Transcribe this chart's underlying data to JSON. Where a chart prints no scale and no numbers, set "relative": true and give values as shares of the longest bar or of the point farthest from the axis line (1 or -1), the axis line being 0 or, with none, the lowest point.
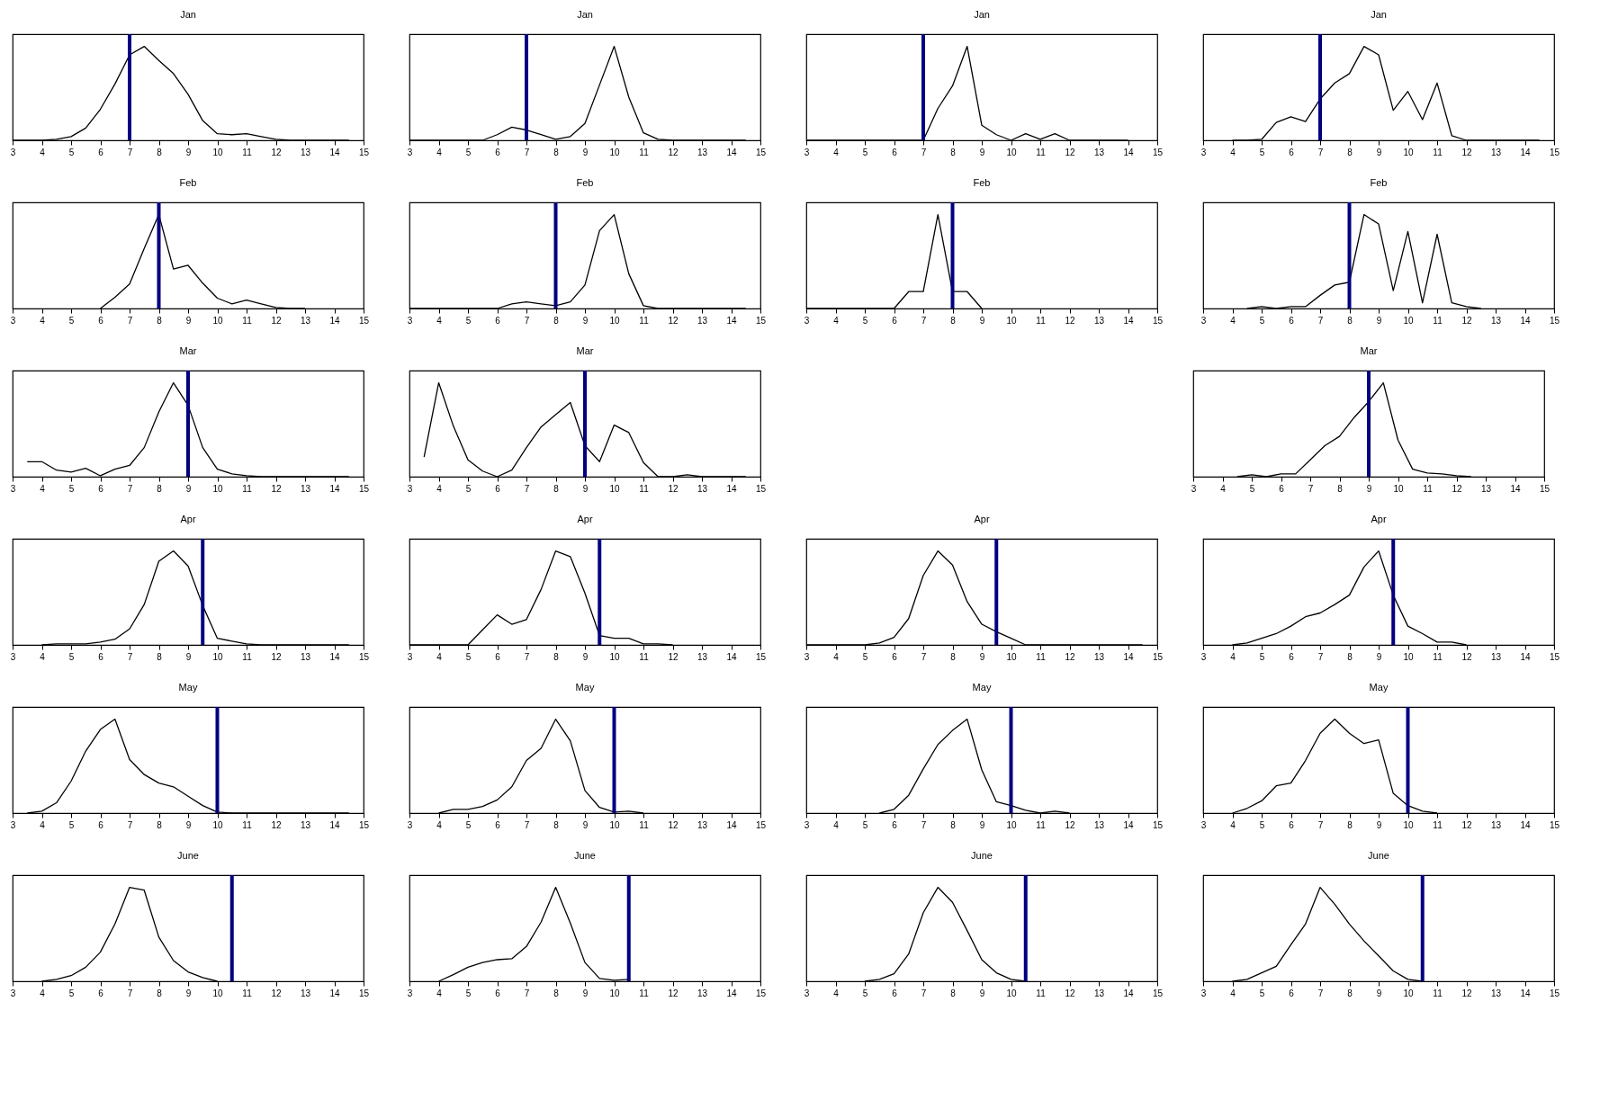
{
  "chart_data": [
    {
      "type": "line",
      "title": "Jan",
      "relative": true,
      "color": "#000000",
      "xlim": [
        3,
        15
      ],
      "xticks": [
        3,
        4,
        5,
        6,
        7,
        8,
        9,
        10,
        11,
        12,
        13,
        14,
        15
      ],
      "ref_lines": [
        {
          "axis": "x",
          "value": 7,
          "color": "#000080"
        }
      ],
      "x": [
        3,
        3.5,
        4,
        4.5,
        5,
        5.5,
        6,
        6.5,
        7,
        7.5,
        8,
        8.5,
        9,
        9.5,
        10,
        10.5,
        11,
        11.5,
        12,
        12.5,
        13,
        13.5,
        14,
        14.5
      ],
      "values": [
        0,
        0,
        0,
        0.01,
        0.04,
        0.13,
        0.33,
        0.6,
        0.91,
        1,
        0.85,
        0.71,
        0.49,
        0.21,
        0.07,
        0.06,
        0.07,
        0.04,
        0.01,
        0,
        0,
        0,
        0,
        0
      ]
    },
    {
      "type": "line",
      "title": "Jan",
      "relative": true,
      "color": "#000000",
      "xlim": [
        3,
        15
      ],
      "xticks": [
        3,
        4,
        5,
        6,
        7,
        8,
        9,
        10,
        11,
        12,
        13,
        14,
        15
      ],
      "ref_lines": [
        {
          "axis": "x",
          "value": 7,
          "color": "#000080"
        }
      ],
      "x": [
        3,
        3.5,
        4,
        4.5,
        5,
        5.5,
        6,
        6.5,
        7,
        7.5,
        8,
        8.5,
        9,
        9.5,
        10,
        10.5,
        11,
        11.5,
        12,
        12.5,
        13,
        13.5,
        14,
        14.5
      ],
      "values": [
        0,
        0,
        0,
        0,
        0,
        0,
        0.06,
        0.14,
        0.11,
        0.06,
        0.01,
        0.04,
        0.18,
        0.59,
        1,
        0.46,
        0.08,
        0.01,
        0,
        0,
        0,
        0,
        0,
        0
      ]
    },
    {
      "type": "line",
      "title": "Jan",
      "relative": true,
      "color": "#000000",
      "xlim": [
        3,
        15
      ],
      "xticks": [
        3,
        4,
        5,
        6,
        7,
        8,
        9,
        10,
        11,
        12,
        13,
        14,
        15
      ],
      "ref_lines": [
        {
          "axis": "x",
          "value": 7,
          "color": "#000080"
        }
      ],
      "x": [
        3,
        3.5,
        4,
        4.5,
        5,
        5.5,
        6,
        6.5,
        7,
        7.5,
        8,
        8.5,
        9,
        9.5,
        10,
        10.5,
        11,
        11.5,
        12,
        12.5,
        13,
        13.5,
        14
      ],
      "values": [
        0,
        0,
        0,
        0,
        0,
        0,
        0,
        0,
        0,
        0.34,
        0.58,
        1,
        0.16,
        0.06,
        0,
        0.07,
        0.01,
        0.07,
        0,
        0,
        0,
        0,
        0
      ]
    },
    {
      "type": "line",
      "title": "Jan",
      "relative": true,
      "color": "#000000",
      "xlim": [
        3,
        15
      ],
      "xticks": [
        3,
        4,
        5,
        6,
        7,
        8,
        9,
        10,
        11,
        12,
        13,
        14,
        15
      ],
      "ref_lines": [
        {
          "axis": "x",
          "value": 7,
          "color": "#000080"
        }
      ],
      "x": [
        4,
        4.5,
        5,
        5.5,
        6,
        6.5,
        7,
        7.5,
        8,
        8.5,
        9,
        9.5,
        10,
        10.5,
        11,
        11.5,
        12,
        12.5,
        13,
        13.5,
        14,
        14.5
      ],
      "values": [
        0,
        0,
        0.01,
        0.19,
        0.25,
        0.2,
        0.44,
        0.61,
        0.71,
        1,
        0.91,
        0.32,
        0.52,
        0.22,
        0.61,
        0.05,
        0,
        0,
        0,
        0,
        0,
        0
      ]
    },
    {
      "type": "line",
      "title": "Feb",
      "relative": true,
      "color": "#000000",
      "xlim": [
        3,
        15
      ],
      "xticks": [
        3,
        4,
        5,
        6,
        7,
        8,
        9,
        10,
        11,
        12,
        13,
        14,
        15
      ],
      "ref_lines": [
        {
          "axis": "x",
          "value": 8,
          "color": "#000080"
        }
      ],
      "x": [
        6,
        6.5,
        7,
        7.5,
        8,
        8.5,
        9,
        9.5,
        10,
        10.5,
        11,
        11.5,
        12,
        12.5,
        13
      ],
      "values": [
        0,
        0.12,
        0.26,
        0.64,
        1,
        0.42,
        0.46,
        0.27,
        0.11,
        0.05,
        0.09,
        0.05,
        0.01,
        0,
        0
      ]
    },
    {
      "type": "line",
      "title": "Feb",
      "relative": true,
      "color": "#000000",
      "xlim": [
        3,
        15
      ],
      "xticks": [
        3,
        4,
        5,
        6,
        7,
        8,
        9,
        10,
        11,
        12,
        13,
        14,
        15
      ],
      "ref_lines": [
        {
          "axis": "x",
          "value": 8,
          "color": "#000080"
        }
      ],
      "x": [
        3,
        3.5,
        4,
        4.5,
        5,
        5.5,
        6,
        6.5,
        7,
        7.5,
        8,
        8.5,
        9,
        9.5,
        10,
        10.5,
        11,
        11.5,
        12,
        12.5,
        13,
        13.5,
        14,
        14.5
      ],
      "values": [
        0,
        0,
        0,
        0,
        0,
        0,
        0,
        0.05,
        0.07,
        0.05,
        0.03,
        0.07,
        0.25,
        0.83,
        1,
        0.37,
        0.03,
        0,
        0,
        0,
        0,
        0,
        0,
        0
      ]
    },
    {
      "type": "line",
      "title": "Feb",
      "relative": true,
      "color": "#000000",
      "xlim": [
        3,
        15
      ],
      "xticks": [
        3,
        4,
        5,
        6,
        7,
        8,
        9,
        10,
        11,
        12,
        13,
        14,
        15
      ],
      "ref_lines": [
        {
          "axis": "x",
          "value": 8,
          "color": "#000080"
        }
      ],
      "x": [
        3,
        3.5,
        4,
        4.5,
        5,
        5.5,
        6,
        6.5,
        7,
        7.5,
        8,
        8.5,
        9
      ],
      "values": [
        0,
        0,
        0,
        0,
        0,
        0,
        0,
        0.18,
        0.18,
        1,
        0.18,
        0.18,
        0
      ]
    },
    {
      "type": "line",
      "title": "Feb",
      "relative": true,
      "color": "#000000",
      "xlim": [
        3,
        15
      ],
      "xticks": [
        3,
        4,
        5,
        6,
        7,
        8,
        9,
        10,
        11,
        12,
        13,
        14,
        15
      ],
      "ref_lines": [
        {
          "axis": "x",
          "value": 8,
          "color": "#000080"
        }
      ],
      "x": [
        4.5,
        5,
        5.5,
        6,
        6.5,
        7,
        7.5,
        8,
        8.5,
        9,
        9.5,
        10,
        10.5,
        11,
        11.5,
        12,
        12.5
      ],
      "values": [
        0,
        0.02,
        0,
        0.02,
        0.02,
        0.14,
        0.25,
        0.28,
        1,
        0.9,
        0.19,
        0.82,
        0.06,
        0.79,
        0.06,
        0.02,
        0
      ]
    },
    {
      "type": "line",
      "title": "Mar",
      "relative": true,
      "color": "#000000",
      "xlim": [
        3,
        15
      ],
      "xticks": [
        3,
        4,
        5,
        6,
        7,
        8,
        9,
        10,
        11,
        12,
        13,
        14,
        15
      ],
      "ref_lines": [
        {
          "axis": "x",
          "value": 9,
          "color": "#000080"
        }
      ],
      "x": [
        3.5,
        4,
        4.5,
        5,
        5.5,
        6,
        6.5,
        7,
        7.5,
        8,
        8.5,
        9,
        9.5,
        10,
        10.5,
        11,
        11.5,
        12,
        12.5,
        13,
        13.5,
        14,
        14.5
      ],
      "values": [
        0.16,
        0.16,
        0.07,
        0.05,
        0.09,
        0.01,
        0.08,
        0.12,
        0.31,
        0.69,
        1,
        0.76,
        0.31,
        0.08,
        0.03,
        0.01,
        0,
        0,
        0,
        0,
        0,
        0,
        0
      ]
    },
    {
      "type": "line",
      "title": "Mar",
      "relative": true,
      "color": "#000000",
      "xlim": [
        3,
        15
      ],
      "xticks": [
        3,
        4,
        5,
        6,
        7,
        8,
        9,
        10,
        11,
        12,
        13,
        14,
        15
      ],
      "ref_lines": [
        {
          "axis": "x",
          "value": 9,
          "color": "#000080"
        }
      ],
      "x": [
        3.5,
        4,
        4.5,
        5,
        5.5,
        6,
        6.5,
        7,
        7.5,
        8,
        8.5,
        9,
        9.5,
        10,
        10.5,
        11,
        11.5,
        12,
        12.5,
        13,
        13.5,
        14,
        14.5
      ],
      "values": [
        0.21,
        1,
        0.54,
        0.18,
        0.06,
        0,
        0.07,
        0.31,
        0.53,
        0.66,
        0.79,
        0.33,
        0.16,
        0.55,
        0.47,
        0.15,
        0,
        0,
        0.02,
        0,
        0,
        0,
        0
      ]
    },
    {
      "type": "line",
      "title": "Mar",
      "relative": true,
      "color": "#000000",
      "xlim": [
        3,
        15
      ],
      "xticks": [
        3,
        4,
        5,
        6,
        7,
        8,
        9,
        10,
        11,
        12,
        13,
        14,
        15
      ],
      "ref_lines": [
        {
          "axis": "x",
          "value": 9,
          "color": "#000080"
        }
      ],
      "x": [
        4.5,
        5,
        5.5,
        6,
        6.5,
        7,
        7.5,
        8,
        8.5,
        9,
        9.5,
        10,
        10.5,
        11,
        11.5,
        12,
        12.5
      ],
      "values": [
        0,
        0.02,
        0,
        0.03,
        0.03,
        0.18,
        0.33,
        0.43,
        0.63,
        0.8,
        1,
        0.39,
        0.08,
        0.04,
        0.03,
        0.01,
        0
      ]
    },
    {
      "type": "line",
      "title": "Apr",
      "relative": true,
      "color": "#000000",
      "xlim": [
        3,
        15
      ],
      "xticks": [
        3,
        4,
        5,
        6,
        7,
        8,
        9,
        10,
        11,
        12,
        13,
        14,
        15
      ],
      "ref_lines": [
        {
          "axis": "x",
          "value": 9.5,
          "color": "#000080"
        }
      ],
      "x": [
        4,
        4.5,
        5,
        5.5,
        6,
        6.5,
        7,
        7.5,
        8,
        8.5,
        9,
        9.5,
        10,
        10.5,
        11,
        11.5,
        12,
        12.5,
        13,
        13.5,
        14,
        14.5
      ],
      "values": [
        0,
        0.01,
        0.01,
        0.01,
        0.03,
        0.06,
        0.17,
        0.43,
        0.89,
        1,
        0.84,
        0.42,
        0.07,
        0.04,
        0.01,
        0,
        0,
        0,
        0,
        0,
        0,
        0
      ]
    },
    {
      "type": "line",
      "title": "Apr",
      "relative": true,
      "color": "#000000",
      "xlim": [
        3,
        15
      ],
      "xticks": [
        3,
        4,
        5,
        6,
        7,
        8,
        9,
        10,
        11,
        12,
        13,
        14,
        15
      ],
      "ref_lines": [
        {
          "axis": "x",
          "value": 9.5,
          "color": "#000080"
        }
      ],
      "x": [
        3,
        3.5,
        4,
        4.5,
        5,
        5.5,
        6,
        6.5,
        7,
        7.5,
        8,
        8.5,
        9,
        9.5,
        10,
        10.5,
        11,
        11.5,
        12
      ],
      "values": [
        0,
        0,
        0,
        0,
        0,
        0.16,
        0.32,
        0.22,
        0.27,
        0.59,
        1,
        0.94,
        0.55,
        0.1,
        0.07,
        0.07,
        0.01,
        0.01,
        0
      ]
    },
    {
      "type": "line",
      "title": "Apr",
      "relative": true,
      "color": "#000000",
      "xlim": [
        3,
        15
      ],
      "xticks": [
        3,
        4,
        5,
        6,
        7,
        8,
        9,
        10,
        11,
        12,
        13,
        14,
        15
      ],
      "ref_lines": [
        {
          "axis": "x",
          "value": 9.5,
          "color": "#000080"
        }
      ],
      "x": [
        3,
        3.5,
        4,
        4.5,
        5,
        5.5,
        6,
        6.5,
        7,
        7.5,
        8,
        8.5,
        9,
        9.5,
        10,
        10.5,
        11,
        11.5,
        12,
        12.5,
        13,
        13.5,
        14,
        14.5
      ],
      "values": [
        0,
        0,
        0,
        0,
        0,
        0.02,
        0.08,
        0.28,
        0.74,
        1,
        0.85,
        0.46,
        0.22,
        0.14,
        0.07,
        0,
        0,
        0,
        0,
        0,
        0,
        0,
        0,
        0
      ]
    },
    {
      "type": "line",
      "title": "Apr",
      "relative": true,
      "color": "#000000",
      "xlim": [
        3,
        15
      ],
      "xticks": [
        3,
        4,
        5,
        6,
        7,
        8,
        9,
        10,
        11,
        12,
        13,
        14,
        15
      ],
      "ref_lines": [
        {
          "axis": "x",
          "value": 9.5,
          "color": "#000080"
        }
      ],
      "x": [
        4,
        4.5,
        5,
        5.5,
        6,
        6.5,
        7,
        7.5,
        8,
        8.5,
        9,
        9.5,
        10,
        10.5,
        11,
        11.5,
        12
      ],
      "values": [
        0,
        0.02,
        0.07,
        0.12,
        0.2,
        0.3,
        0.34,
        0.43,
        0.53,
        0.83,
        1,
        0.53,
        0.2,
        0.12,
        0.03,
        0.03,
        0
      ]
    },
    {
      "type": "line",
      "title": "May",
      "relative": true,
      "color": "#000000",
      "xlim": [
        3,
        15
      ],
      "xticks": [
        3,
        4,
        5,
        6,
        7,
        8,
        9,
        10,
        11,
        12,
        13,
        14,
        15
      ],
      "ref_lines": [
        {
          "axis": "x",
          "value": 10,
          "color": "#000080"
        }
      ],
      "x": [
        3.5,
        4,
        4.5,
        5,
        5.5,
        6,
        6.5,
        7,
        7.5,
        8,
        8.5,
        9,
        9.5,
        10,
        10.5,
        11,
        11.5,
        12,
        12.5,
        13,
        13.5,
        14,
        14.5
      ],
      "values": [
        0,
        0.02,
        0.11,
        0.34,
        0.66,
        0.89,
        1,
        0.57,
        0.41,
        0.32,
        0.28,
        0.18,
        0.08,
        0.01,
        0,
        0,
        0,
        0,
        0,
        0,
        0,
        0,
        0
      ]
    },
    {
      "type": "line",
      "title": "May",
      "relative": true,
      "color": "#000000",
      "xlim": [
        3,
        15
      ],
      "xticks": [
        3,
        4,
        5,
        6,
        7,
        8,
        9,
        10,
        11,
        12,
        13,
        14,
        15
      ],
      "ref_lines": [
        {
          "axis": "x",
          "value": 10,
          "color": "#000080"
        }
      ],
      "x": [
        4,
        4.5,
        5,
        5.5,
        6,
        6.5,
        7,
        7.5,
        8,
        8.5,
        9,
        9.5,
        10,
        10.5,
        11
      ],
      "values": [
        0,
        0.04,
        0.04,
        0.07,
        0.14,
        0.28,
        0.56,
        0.69,
        1,
        0.77,
        0.24,
        0.06,
        0.01,
        0.02,
        0
      ]
    },
    {
      "type": "line",
      "title": "May",
      "relative": true,
      "color": "#000000",
      "xlim": [
        3,
        15
      ],
      "xticks": [
        3,
        4,
        5,
        6,
        7,
        8,
        9,
        10,
        11,
        12,
        13,
        14,
        15
      ],
      "ref_lines": [
        {
          "axis": "x",
          "value": 10,
          "color": "#000080"
        }
      ],
      "x": [
        5.5,
        6,
        6.5,
        7,
        7.5,
        8,
        8.5,
        9,
        9.5,
        10,
        10.5,
        11,
        11.5,
        12
      ],
      "values": [
        0,
        0.04,
        0.19,
        0.47,
        0.73,
        0.88,
        1,
        0.46,
        0.12,
        0.08,
        0.03,
        0,
        0.02,
        0
      ]
    },
    {
      "type": "line",
      "title": "May",
      "relative": true,
      "color": "#000000",
      "xlim": [
        3,
        15
      ],
      "xticks": [
        3,
        4,
        5,
        6,
        7,
        8,
        9,
        10,
        11,
        12,
        13,
        14,
        15
      ],
      "ref_lines": [
        {
          "axis": "x",
          "value": 10,
          "color": "#000080"
        }
      ],
      "x": [
        4,
        4.5,
        5,
        5.5,
        6,
        6.5,
        7,
        7.5,
        8,
        8.5,
        9,
        9.5,
        10,
        10.5,
        11
      ],
      "values": [
        0,
        0.05,
        0.13,
        0.29,
        0.32,
        0.56,
        0.85,
        1,
        0.85,
        0.74,
        0.78,
        0.21,
        0.08,
        0.02,
        0
      ]
    },
    {
      "type": "line",
      "title": "June",
      "relative": true,
      "color": "#000000",
      "xlim": [
        3,
        15
      ],
      "xticks": [
        3,
        4,
        5,
        6,
        7,
        8,
        9,
        10,
        11,
        12,
        13,
        14,
        15
      ],
      "ref_lines": [
        {
          "axis": "x",
          "value": 10.5,
          "color": "#000080"
        }
      ],
      "x": [
        4,
        4.5,
        5,
        5.5,
        6,
        6.5,
        7,
        7.5,
        8,
        8.5,
        9,
        9.5,
        10
      ],
      "values": [
        0,
        0.02,
        0.06,
        0.15,
        0.31,
        0.61,
        1,
        0.97,
        0.47,
        0.22,
        0.1,
        0.04,
        0
      ]
    },
    {
      "type": "line",
      "title": "June",
      "relative": true,
      "color": "#000000",
      "xlim": [
        3,
        15
      ],
      "xticks": [
        3,
        4,
        5,
        6,
        7,
        8,
        9,
        10,
        11,
        12,
        13,
        14,
        15
      ],
      "ref_lines": [
        {
          "axis": "x",
          "value": 10.5,
          "color": "#000080"
        }
      ],
      "x": [
        4,
        4.5,
        5,
        5.5,
        6,
        6.5,
        7,
        7.5,
        8,
        8.5,
        9,
        9.5,
        10,
        10.5
      ],
      "values": [
        0,
        0.07,
        0.15,
        0.2,
        0.23,
        0.24,
        0.37,
        0.63,
        1,
        0.62,
        0.2,
        0.03,
        0.01,
        0.02
      ]
    },
    {
      "type": "line",
      "title": "June",
      "relative": true,
      "color": "#000000",
      "xlim": [
        3,
        15
      ],
      "xticks": [
        3,
        4,
        5,
        6,
        7,
        8,
        9,
        10,
        11,
        12,
        13,
        14,
        15
      ],
      "ref_lines": [
        {
          "axis": "x",
          "value": 10.5,
          "color": "#000080"
        }
      ],
      "x": [
        5,
        5.5,
        6,
        6.5,
        7,
        7.5,
        8,
        8.5,
        9,
        9.5,
        10,
        10.5
      ],
      "values": [
        0,
        0.02,
        0.08,
        0.29,
        0.73,
        1,
        0.84,
        0.54,
        0.23,
        0.09,
        0.02,
        0
      ]
    },
    {
      "type": "line",
      "title": "June",
      "relative": true,
      "color": "#000000",
      "xlim": [
        3,
        15
      ],
      "xticks": [
        3,
        4,
        5,
        6,
        7,
        8,
        9,
        10,
        11,
        12,
        13,
        14,
        15
      ],
      "ref_lines": [
        {
          "axis": "x",
          "value": 10.5,
          "color": "#000080"
        }
      ],
      "x": [
        4,
        4.5,
        5,
        5.5,
        6,
        6.5,
        7,
        7.5,
        8,
        8.5,
        9,
        9.5,
        10,
        10.5
      ],
      "values": [
        0,
        0.02,
        0.09,
        0.16,
        0.39,
        0.61,
        1,
        0.82,
        0.61,
        0.43,
        0.27,
        0.11,
        0.02,
        0
      ]
    }
  ]
}
